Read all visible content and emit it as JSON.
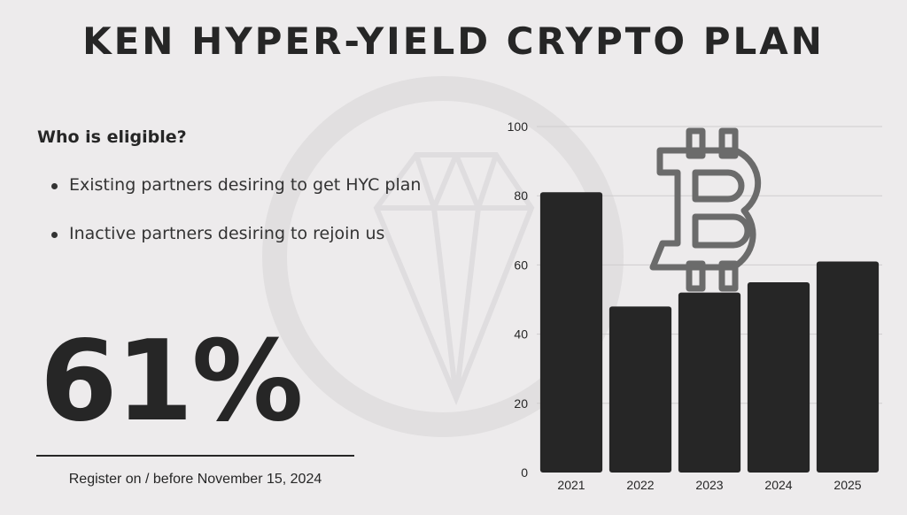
{
  "title": "KEN HYPER-YIELD CRYPTO PLAN",
  "eligibility": {
    "heading": "Who is eligible?",
    "items": [
      "Existing partners desiring to get HYC plan",
      "Inactive partners desiring to rejoin us"
    ]
  },
  "stat": {
    "value": "61%"
  },
  "register_text": "Register on / before November 15, 2024",
  "icons": {
    "watermark": "diamond-icon",
    "chart_decoration": "bitcoin-icon"
  },
  "colors": {
    "background": "#edebec",
    "bar": "#262626",
    "text": "#262626",
    "bitcoin_outline": "#6b6b6b"
  },
  "chart_data": {
    "type": "bar",
    "categories": [
      "2021",
      "2022",
      "2023",
      "2024",
      "2025"
    ],
    "values": [
      81,
      48,
      52,
      55,
      61
    ],
    "ylim": [
      0,
      100
    ],
    "yticks": [
      0,
      20,
      40,
      60,
      80,
      100
    ],
    "grid": true,
    "title": "",
    "xlabel": "",
    "ylabel": ""
  }
}
